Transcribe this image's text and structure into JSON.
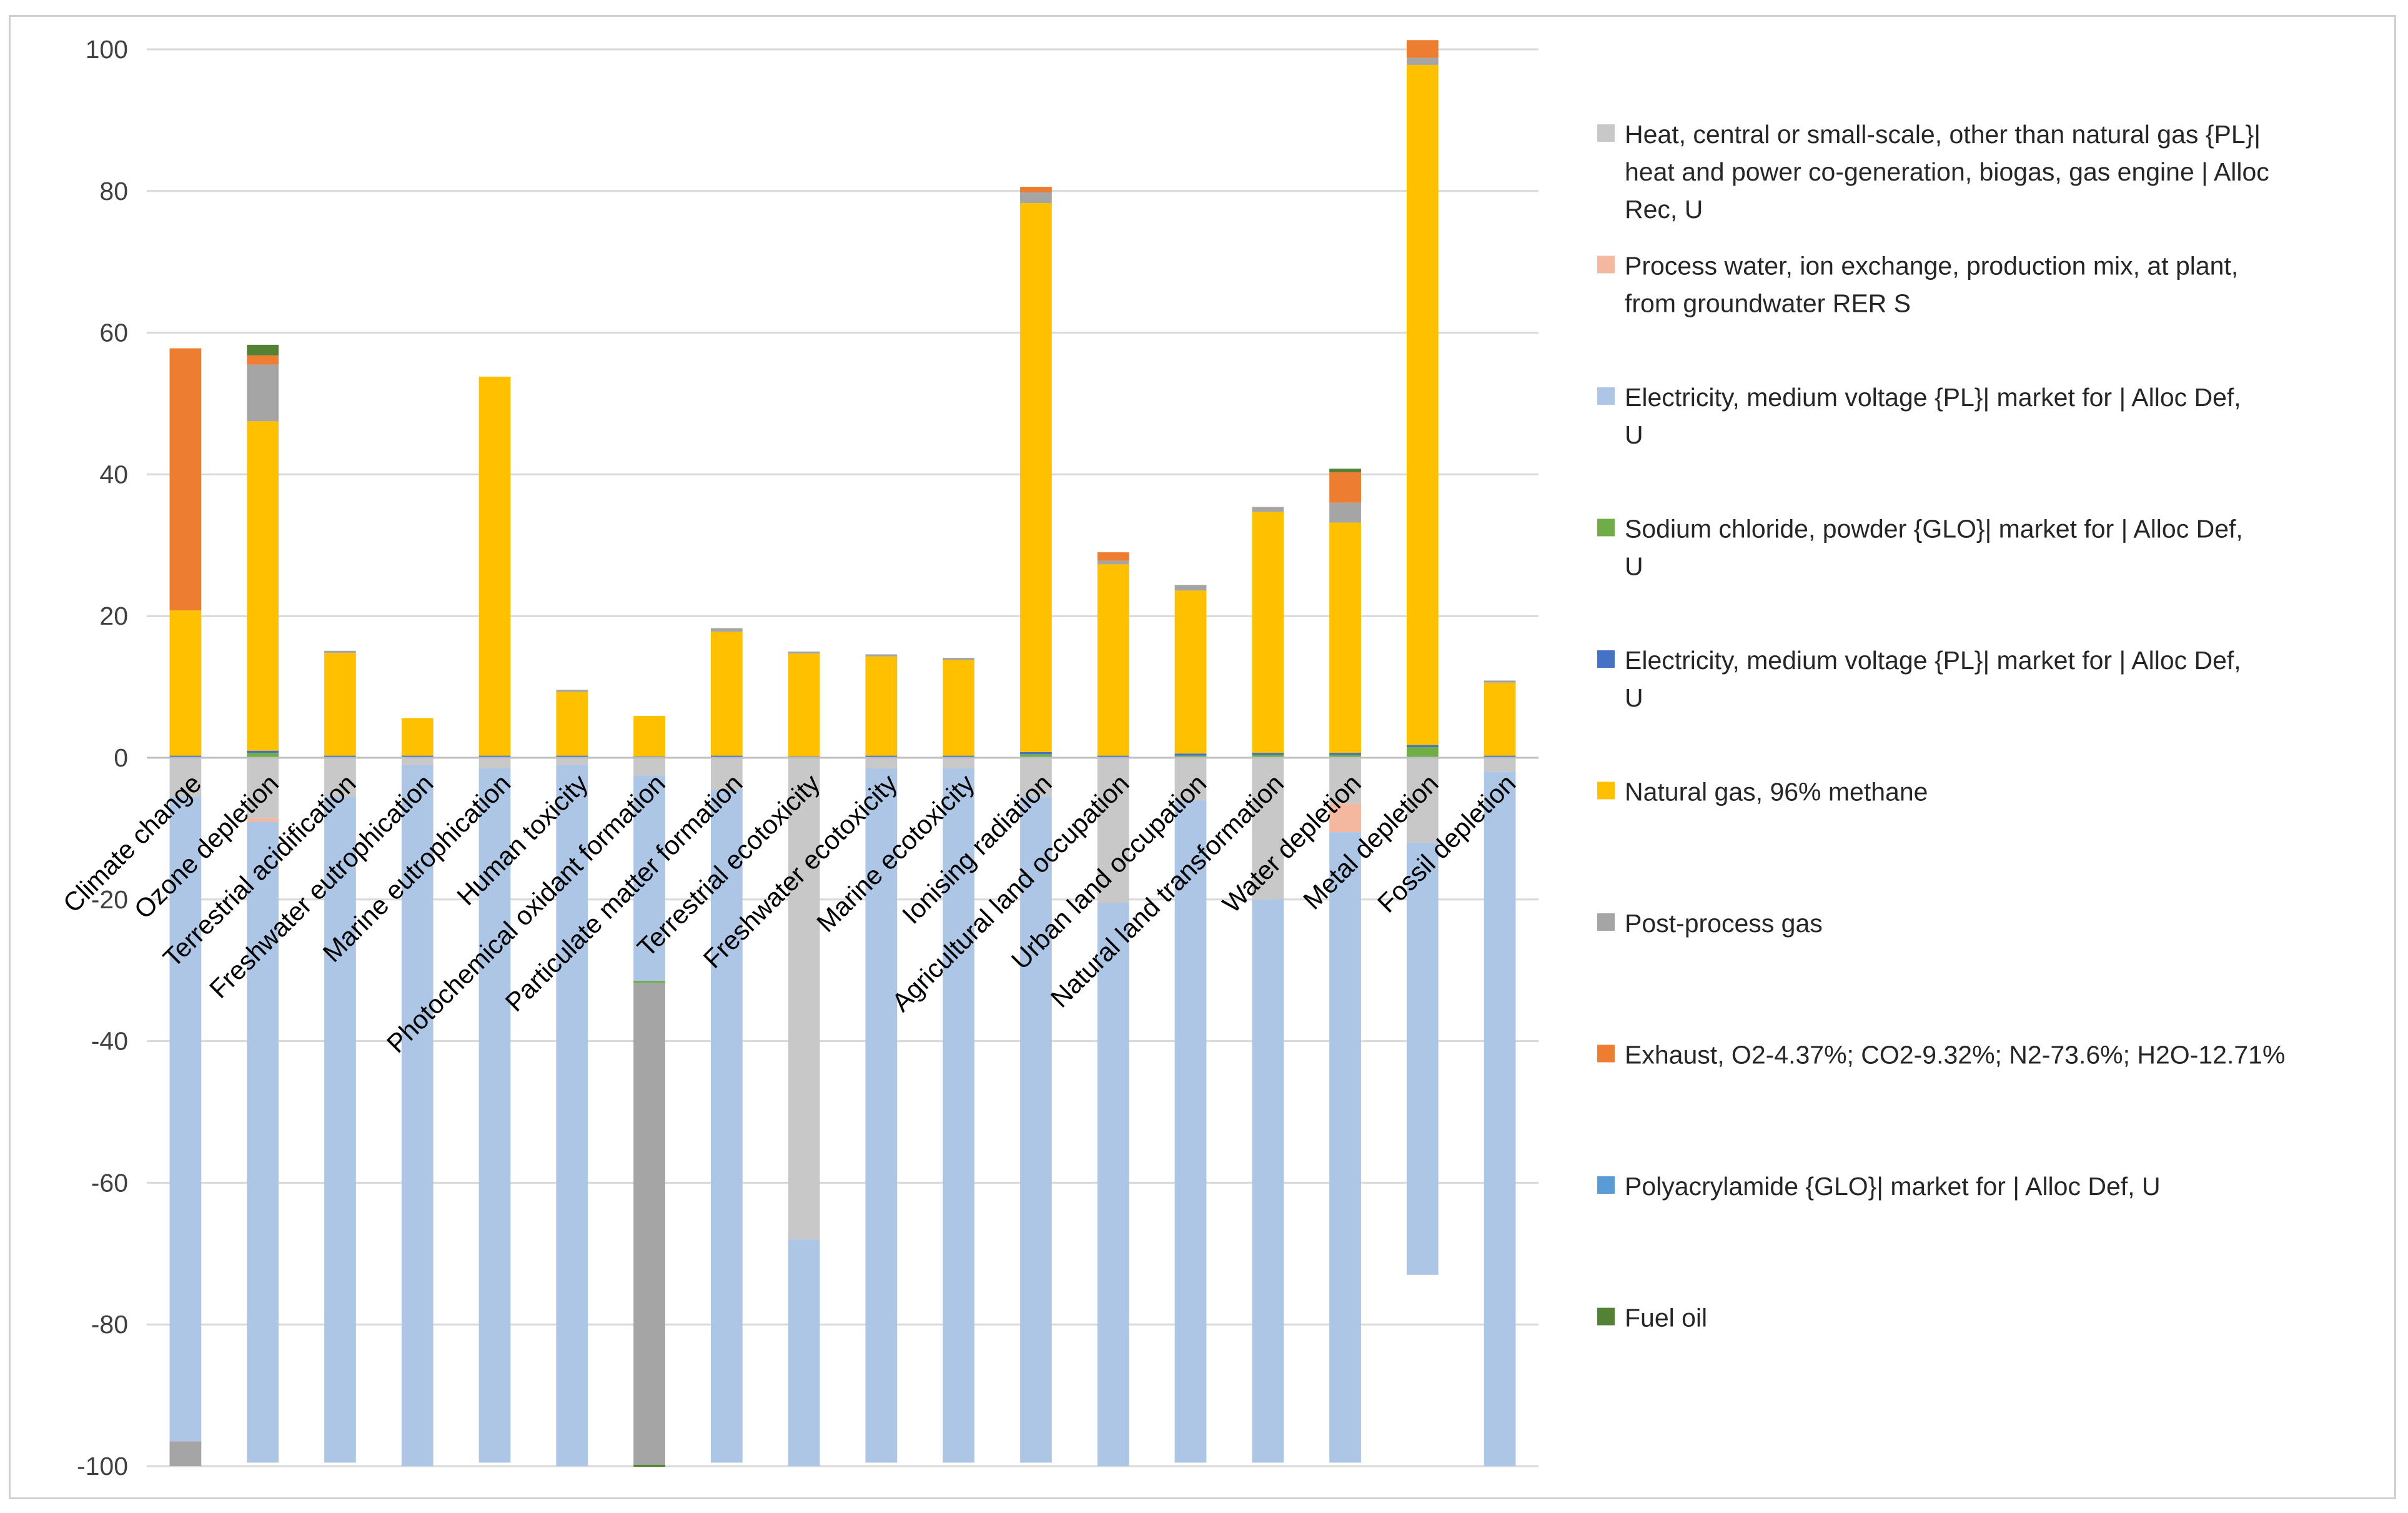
{
  "chart_data": {
    "type": "bar",
    "stacked": true,
    "title": "",
    "xlabel": "",
    "ylabel": "",
    "ylim": [
      -100,
      100
    ],
    "yticks": [
      100,
      80,
      60,
      40,
      20,
      0,
      -20,
      -40,
      -60,
      -80,
      -100
    ],
    "grid": true,
    "legend_position": "right",
    "categories": [
      "Climate change",
      "Ozone depletion",
      "Terrestrial acidification",
      "Freshwater eutrophication",
      "Marine eutrophication",
      "Human toxicity",
      "Photochemical oxidant formation",
      "Particulate matter formation",
      "Terrestrial ecotoxicity",
      "Freshwater ecotoxicity",
      "Marine ecotoxicity",
      "Ionising radiation",
      "Agricultural land occupation",
      "Urban land occupation",
      "Natural land transformation",
      "Water depletion",
      "Metal depletion",
      "Fossil depletion"
    ],
    "series": [
      {
        "name": "Heat, central or small-scale, other than natural gas {PL}| heat and power co-generation, biogas, gas engine | Alloc Rec, U",
        "color": "#c8c8c8",
        "values": [
          -5.5,
          -8.5,
          -5.5,
          -1,
          -1.5,
          -1,
          -2.5,
          -4.5,
          -68,
          -1.5,
          -1.5,
          -5.5,
          -20.5,
          -6,
          -20,
          -6.5,
          -12,
          -2
        ]
      },
      {
        "name": "Process water, ion exchange, production mix, at plant, from groundwater RER S",
        "color": "#f4b8a0",
        "values": [
          0,
          -0.5,
          0,
          0,
          0,
          0,
          0,
          0,
          0,
          0,
          0,
          0,
          0,
          0,
          0,
          -4,
          0,
          0
        ]
      },
      {
        "name": "Electricity, medium voltage {PL}| market for | Alloc Def, U",
        "color": "#aec6e6",
        "values": [
          -91,
          -90.5,
          -94,
          -99,
          -98,
          -99,
          -29,
          -95,
          -32,
          -98,
          -98,
          -94,
          -79.5,
          -93.5,
          -79.5,
          -89,
          -61,
          -98
        ]
      },
      {
        "name": "Sodium chloride, powder {GLO}| market for | Alloc Def, U",
        "color": "#70ad47",
        "values": [
          0,
          0.7,
          0,
          0,
          0,
          0,
          -0.3,
          0,
          0,
          0,
          0,
          0.5,
          0,
          0.3,
          0.4,
          0.4,
          1.5,
          0
        ]
      },
      {
        "name": "Electricity, medium voltage {PL}| market for | Alloc Def, U",
        "color": "#4472c4",
        "values": [
          0.3,
          0.3,
          0.3,
          0.3,
          0.3,
          0.3,
          0.2,
          0.3,
          0.2,
          0.3,
          0.3,
          0.3,
          0.3,
          0.3,
          0.3,
          0.3,
          0.3,
          0.3
        ]
      },
      {
        "name": "Natural gas, 96% methane",
        "color": "#ffc000",
        "values": [
          20.5,
          46.5,
          14.5,
          5.3,
          53.5,
          9,
          5.7,
          17.5,
          14.5,
          14,
          13.5,
          77.5,
          27,
          23,
          34,
          32.5,
          96,
          10.3
        ]
      },
      {
        "name": "Post-process gas",
        "color": "#a5a5a5",
        "values": [
          -3.5,
          8,
          0.3,
          0,
          0,
          0.3,
          -68,
          0.5,
          0.3,
          0.3,
          0.3,
          1.5,
          0.5,
          0.8,
          0.7,
          2.8,
          1,
          0.3
        ]
      },
      {
        "name": "Exhaust, O2-4.37%; CO2-9.32%; N2-73.6%; H2O-12.71%",
        "color": "#ed7d31",
        "values": [
          37,
          1.3,
          0,
          0,
          0,
          0,
          0,
          0,
          0,
          0,
          0,
          0.8,
          1.2,
          0,
          0,
          4.3,
          2.5,
          0
        ]
      },
      {
        "name": "Polyacrylamide {GLO}| market for | Alloc Def, U",
        "color": "#5b9bd5",
        "values": [
          0,
          0,
          0,
          0,
          0,
          0,
          0,
          0,
          0,
          0,
          0,
          0,
          0,
          0,
          0,
          0,
          0,
          0
        ]
      },
      {
        "name": "Fuel oil",
        "color": "#548235",
        "values": [
          0,
          1.5,
          0,
          0,
          0,
          0,
          -0.3,
          0,
          0,
          0,
          0,
          0,
          0,
          0,
          0,
          0.5,
          0,
          0
        ]
      }
    ],
    "legend_lines": [
      [
        "Heat, central or small-scale, other than natural gas {PL}|",
        "heat and power co-generation, biogas, gas engine | Alloc",
        "Rec, U"
      ],
      [
        "Process water, ion exchange, production mix, at plant,",
        "from groundwater RER S"
      ],
      [
        "Electricity, medium voltage {PL}| market for | Alloc Def,",
        "U"
      ],
      [
        "Sodium chloride, powder {GLO}| market for | Alloc Def,",
        "U"
      ],
      [
        "Electricity, medium voltage {PL}| market for | Alloc Def,",
        "U"
      ],
      [
        "Natural gas, 96% methane"
      ],
      [
        "Post-process gas"
      ],
      [
        "Exhaust, O2-4.37%; CO2-9.32%; N2-73.6%; H2O-12.71%"
      ],
      [
        "Polyacrylamide {GLO}| market for | Alloc Def, U"
      ],
      [
        "Fuel oil"
      ]
    ]
  }
}
